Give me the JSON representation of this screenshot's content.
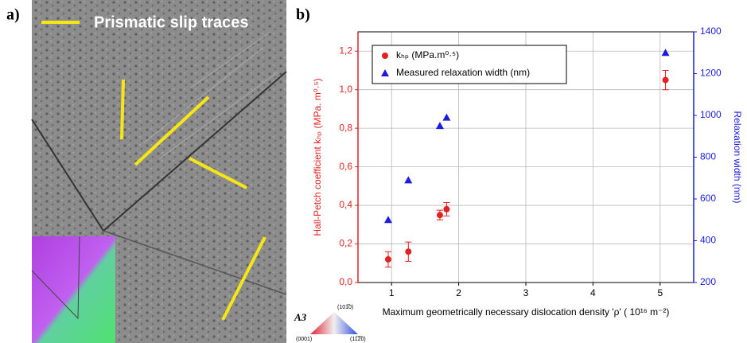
{
  "figure": {
    "panel_a_label": "a)",
    "panel_b_label": "b)",
    "annotation": "Prismatic slip traces",
    "inset_label": "A3",
    "inset_corners": [
      "(0001)",
      "(11̅2̅0)",
      "(101̅0)"
    ]
  },
  "chart_data": {
    "type": "scatter",
    "x_label": "Maximum geometrically necessary dislocation density 'ρ' ( 10¹⁶ m⁻²)",
    "y_label": "Hall-Petch coefficient kₕₚ (MPa. m⁰·⁵)",
    "y2_label": "Relaxation width (nm)",
    "xlim": [
      0.5,
      5.5
    ],
    "xticks": [
      1,
      2,
      3,
      4,
      5
    ],
    "ylim": [
      0,
      1.3
    ],
    "yticks": [
      {
        "value": 0,
        "label": "0,0"
      },
      {
        "value": 0.2,
        "label": "0,2"
      },
      {
        "value": 0.4,
        "label": "0,4"
      },
      {
        "value": 0.6,
        "label": "0,6"
      },
      {
        "value": 0.8,
        "label": "0,8"
      },
      {
        "value": 1.0,
        "label": "1,0"
      },
      {
        "value": 1.2,
        "label": "1,2"
      }
    ],
    "y2lim": [
      200,
      1400
    ],
    "y2ticks": [
      200,
      400,
      600,
      800,
      1000,
      1200,
      1400
    ],
    "grid": true,
    "series": [
      {
        "name": "kₕₚ (MPa.m⁰·⁵)",
        "color": "#e32121",
        "marker": "circle",
        "x": [
          0.95,
          1.25,
          1.72,
          1.82,
          5.08
        ],
        "values": [
          0.12,
          0.16,
          0.35,
          0.38,
          1.05
        ],
        "errors": [
          0.04,
          0.05,
          0.025,
          0.035,
          0.05
        ]
      },
      {
        "name": "Measured relaxation width (nm)",
        "color": "#1c1ce0",
        "marker": "triangle",
        "axis": "y2",
        "x": [
          0.95,
          1.25,
          1.72,
          1.82,
          5.08
        ],
        "values": [
          500,
          690,
          950,
          990,
          1300
        ]
      }
    ]
  }
}
